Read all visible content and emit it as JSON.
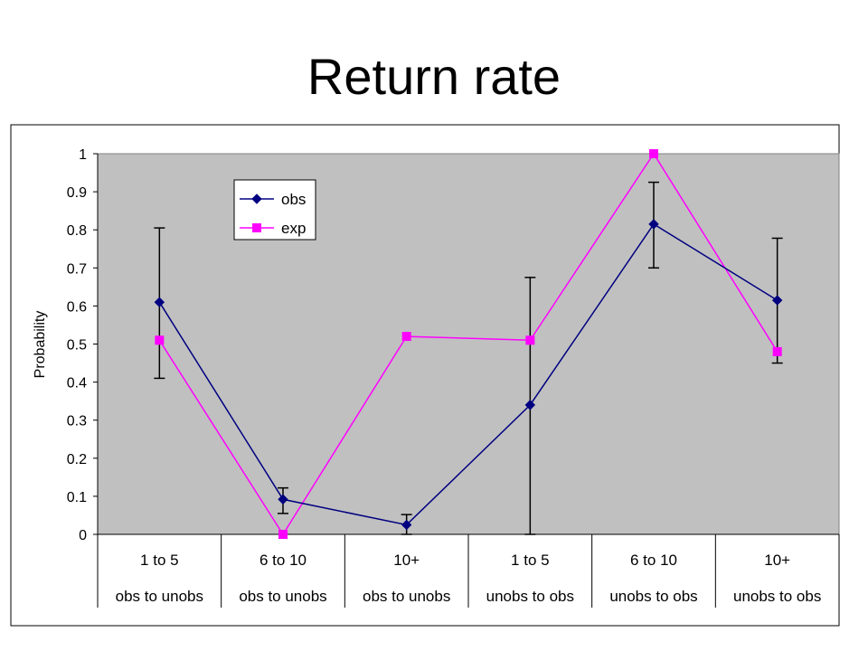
{
  "slide": {
    "title": "Return rate"
  },
  "chart_data": {
    "type": "line",
    "title": "Return rate",
    "xlabel": "",
    "ylabel": "Probability",
    "ylim": [
      0,
      1
    ],
    "yticks": [
      "0",
      "0.1",
      "0.2",
      "0.3",
      "0.4",
      "0.5",
      "0.6",
      "0.7",
      "0.8",
      "0.9",
      "1"
    ],
    "categories": [
      {
        "bin": "1 to 5",
        "direction": "obs to unobs"
      },
      {
        "bin": "6 to 10",
        "direction": "obs to unobs"
      },
      {
        "bin": "10+",
        "direction": "obs to unobs"
      },
      {
        "bin": "1 to 5",
        "direction": "unobs to obs"
      },
      {
        "bin": "6 to 10",
        "direction": "unobs to obs"
      },
      {
        "bin": "10+",
        "direction": "unobs to obs"
      }
    ],
    "series": [
      {
        "name": "obs",
        "color": "#000080",
        "marker": "diamond",
        "values": [
          0.61,
          0.092,
          0.025,
          0.34,
          0.815,
          0.615
        ],
        "error_low": [
          0.41,
          0.055,
          0.0,
          0.0,
          0.7,
          0.45
        ],
        "error_high": [
          0.805,
          0.122,
          0.052,
          0.675,
          0.925,
          0.778
        ]
      },
      {
        "name": "exp",
        "color": "#ff00ff",
        "marker": "square",
        "values": [
          0.51,
          0.0,
          0.52,
          0.51,
          1.0,
          0.48
        ]
      }
    ],
    "plot_background": "#c0c0c0",
    "grid": false,
    "legend_position": "top-left"
  }
}
